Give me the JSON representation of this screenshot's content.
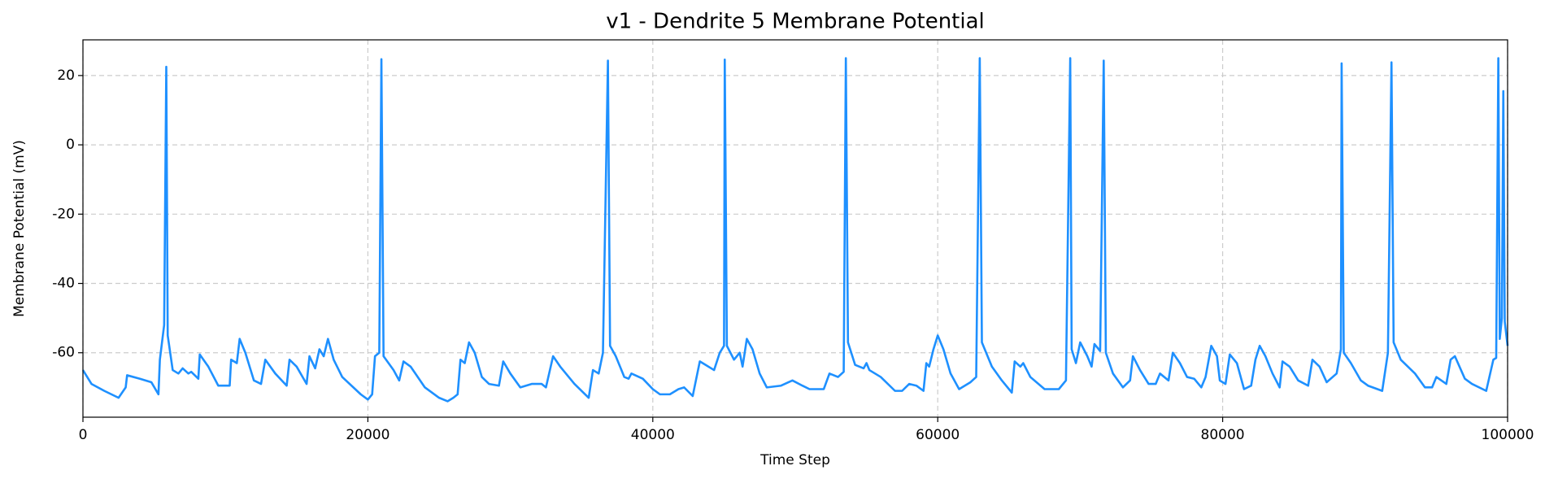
{
  "chart_data": {
    "type": "line",
    "title": "v1 - Dendrite 5 Membrane Potential",
    "x_label": "Time Step",
    "y_label": "Membrane Potential (mV)",
    "xlim": [
      0,
      100000
    ],
    "xticks": [
      0,
      20000,
      40000,
      60000,
      80000,
      100000
    ],
    "ylim": [
      -78.6,
      30.3
    ],
    "yticks": [
      -60,
      -40,
      -20,
      0,
      20
    ],
    "grid": true,
    "x": [
      0,
      600,
      1500,
      2500,
      3000,
      3100,
      4000,
      4800,
      5300,
      5400,
      5700,
      5850,
      5950,
      6300,
      6700,
      7000,
      7400,
      7600,
      8100,
      8200,
      8800,
      9500,
      10300,
      10400,
      10800,
      11000,
      11400,
      12000,
      12500,
      12800,
      13500,
      14300,
      14500,
      15000,
      15700,
      15900,
      16300,
      16600,
      16900,
      17200,
      17600,
      18200,
      19500,
      20000,
      20300,
      20500,
      20800,
      20950,
      21100,
      21800,
      22200,
      22500,
      23000,
      24000,
      25000,
      25600,
      26000,
      26300,
      26500,
      26800,
      27100,
      27500,
      28000,
      28500,
      29200,
      29500,
      30000,
      30700,
      31500,
      32200,
      32500,
      33000,
      33500,
      34500,
      35500,
      35800,
      36200,
      36500,
      36850,
      37000,
      37400,
      38000,
      38300,
      38500,
      39300,
      40000,
      40500,
      41200,
      41800,
      42200,
      42800,
      43300,
      43700,
      44300,
      44700,
      45000,
      45050,
      45200,
      45700,
      46100,
      46300,
      46600,
      47000,
      47500,
      48000,
      49000,
      49800,
      50500,
      51000,
      52000,
      52400,
      53000,
      53400,
      53550,
      53700,
      54200,
      54800,
      55000,
      55200,
      56000,
      57000,
      57500,
      58000,
      58500,
      59000,
      59200,
      59400,
      59700,
      60000,
      60400,
      60900,
      61500,
      62300,
      62700,
      62950,
      63100,
      63800,
      64500,
      65200,
      65400,
      65800,
      66000,
      66500,
      67500,
      68500,
      69000,
      69300,
      69400,
      69700,
      70000,
      70500,
      70800,
      71000,
      71400,
      71650,
      71800,
      72300,
      73000,
      73500,
      73700,
      74200,
      74800,
      75300,
      75600,
      76200,
      76500,
      77000,
      77500,
      78000,
      78500,
      78800,
      79200,
      79600,
      79800,
      80200,
      80500,
      81000,
      81500,
      82000,
      82300,
      82600,
      83000,
      83500,
      84000,
      84200,
      84700,
      85300,
      86000,
      86300,
      86800,
      87300,
      88000,
      88300,
      88350,
      88500,
      89000,
      89700,
      90200,
      91200,
      91600,
      91850,
      92000,
      92500,
      93500,
      94200,
      94700,
      95000,
      95700,
      96000,
      96300,
      97000,
      97500,
      98500,
      99000,
      99200,
      99350,
      99450,
      99600,
      99700,
      99800,
      100000
    ],
    "series": [
      {
        "name": "Dendrite 5",
        "color": "#1e90ff",
        "values": [
          -65,
          -69,
          -71,
          -73,
          -70,
          -66.5,
          -67.5,
          -68.5,
          -72,
          -62,
          -52,
          22.5,
          -55,
          -65,
          -66,
          -64.5,
          -66,
          -65.5,
          -67.5,
          -60.5,
          -64,
          -69.5,
          -69.5,
          -62,
          -63,
          -56,
          -60,
          -68,
          -69,
          -62,
          -66,
          -69.5,
          -62,
          -64,
          -69,
          -61,
          -64.5,
          -59,
          -61,
          -56,
          -62,
          -67,
          -72,
          -73.5,
          -72,
          -61,
          -60,
          24.7,
          -61,
          -65,
          -68,
          -62.5,
          -64,
          -70,
          -73,
          -74,
          -73,
          -72,
          -62,
          -63,
          -57,
          -60,
          -67,
          -69,
          -69.5,
          -62.5,
          -66,
          -70,
          -69,
          -69,
          -70,
          -61,
          -64,
          -69,
          -73,
          -65,
          -66,
          -60,
          24.3,
          -58,
          -61,
          -67,
          -67.5,
          -66,
          -67.5,
          -70.5,
          -72,
          -72,
          -70.5,
          -70,
          -72.5,
          -62.5,
          -63.5,
          -65,
          -60,
          -58,
          24.6,
          -58,
          -62,
          -60,
          -64,
          -56,
          -59,
          -66,
          -70,
          -69.5,
          -68,
          -69.5,
          -70.5,
          -70.5,
          -66,
          -67,
          -65.5,
          25,
          -57,
          -63.5,
          -64.5,
          -63,
          -65,
          -67,
          -71,
          -71,
          -69,
          -69.5,
          -71,
          -63,
          -64,
          -59,
          -55,
          -59,
          -66,
          -70.5,
          -68.5,
          -67,
          25,
          -57,
          -64,
          -68,
          -71.5,
          -62.5,
          -64,
          -63,
          -67,
          -70.5,
          -70.5,
          -68,
          25,
          -59,
          -63,
          -57,
          -61,
          -64,
          -57.5,
          -59.5,
          24.3,
          -60,
          -66,
          -70,
          -68,
          -61,
          -65,
          -69,
          -69,
          -66,
          -68,
          -60,
          -63,
          -67,
          -67.5,
          -70,
          -67,
          -58,
          -61,
          -68,
          -69,
          -60.5,
          -63,
          -70.5,
          -69.5,
          -62,
          -58,
          -61,
          -66,
          -70,
          -62.5,
          -64,
          -68,
          -69.5,
          -62,
          -64,
          -68.5,
          -66,
          -59,
          23.5,
          -60,
          -63,
          -68,
          -69.5,
          -71,
          -60,
          23.8,
          -57,
          -62,
          -66,
          -70,
          -70,
          -67,
          -69,
          -62,
          -61,
          -67.5,
          -69,
          -71,
          -62,
          -61.5,
          25,
          -56,
          -50,
          15.5,
          -51,
          -58
        ]
      }
    ]
  }
}
